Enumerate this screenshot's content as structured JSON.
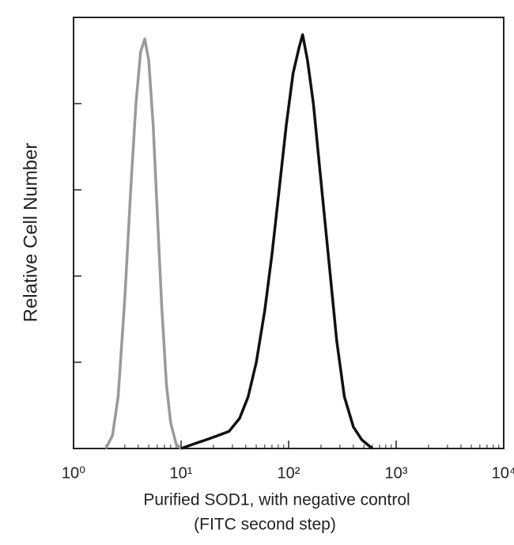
{
  "chart_data": {
    "type": "line",
    "ylabel": "Relative Cell Number",
    "xlabel_lines": [
      "Purified  SOD1,  with negative control",
      "(FITC second step)"
    ],
    "xscale": "log",
    "xlim": [
      1,
      10000
    ],
    "xticks": [
      {
        "value": 1,
        "label": "10⁰"
      },
      {
        "value": 10,
        "label": "10¹"
      },
      {
        "value": 100,
        "label": "10²"
      },
      {
        "value": 1000,
        "label": "10³"
      },
      {
        "value": 10000,
        "label": "10⁴"
      }
    ],
    "ylim": [
      0,
      100
    ],
    "yticks": [
      0,
      20,
      40,
      60,
      80,
      100
    ],
    "series": [
      {
        "color": "#9a9a9a",
        "x": [
          2.0,
          2.3,
          2.6,
          3.0,
          3.4,
          3.8,
          4.2,
          4.6,
          5.0,
          5.5,
          6.0,
          6.6,
          7.3,
          8.0,
          9.0,
          10
        ],
        "values": [
          0,
          3,
          12,
          35,
          60,
          80,
          92,
          95,
          90,
          75,
          55,
          33,
          15,
          6,
          1,
          0
        ]
      },
      {
        "color": "#111111",
        "x": [
          10,
          13,
          17,
          22,
          28,
          35,
          42,
          50,
          60,
          70,
          80,
          95,
          110,
          125,
          135,
          150,
          170,
          200,
          240,
          280,
          330,
          400,
          480,
          600
        ],
        "values": [
          0,
          1,
          2,
          3,
          4,
          7,
          12,
          20,
          32,
          45,
          58,
          75,
          87,
          93,
          96,
          90,
          80,
          62,
          42,
          25,
          12,
          5,
          2,
          0
        ]
      }
    ]
  }
}
